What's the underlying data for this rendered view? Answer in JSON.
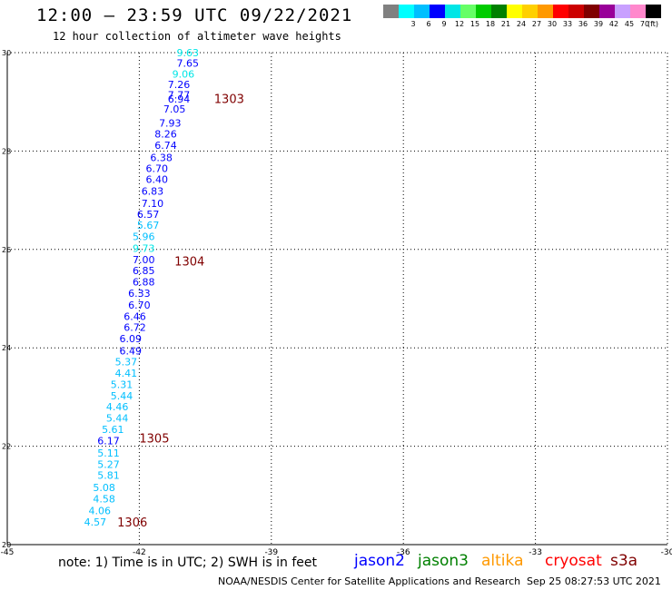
{
  "header": {
    "title": "12:00 — 23:59 UTC 09/22/2021",
    "subtitle": "12 hour collection of altimeter wave heights"
  },
  "color_scale": {
    "unit": "(ft)",
    "swatches": [
      {
        "color": "#808080",
        "label": ""
      },
      {
        "color": "#00ffff",
        "label": "3"
      },
      {
        "color": "#00bfff",
        "label": "6"
      },
      {
        "color": "#0000ff",
        "label": "9"
      },
      {
        "color": "#00e6e6",
        "label": "12"
      },
      {
        "color": "#66ff66",
        "label": "15"
      },
      {
        "color": "#00cc00",
        "label": "18"
      },
      {
        "color": "#008000",
        "label": "21"
      },
      {
        "color": "#ffff00",
        "label": "24"
      },
      {
        "color": "#ffd000",
        "label": "27"
      },
      {
        "color": "#ff9900",
        "label": "30"
      },
      {
        "color": "#ff0000",
        "label": "33"
      },
      {
        "color": "#cc0000",
        "label": "36"
      },
      {
        "color": "#800000",
        "label": "39"
      },
      {
        "color": "#990099",
        "label": "42"
      },
      {
        "color": "#c8a0ff",
        "label": "45"
      },
      {
        "color": "#ff88cc",
        "label": "70"
      },
      {
        "color": "#000000",
        "label": ""
      }
    ]
  },
  "chart_data": {
    "type": "scatter",
    "xlim": [
      -45,
      -30
    ],
    "ylim": [
      20,
      30
    ],
    "x_ticks": [
      "-45",
      "-42",
      "-39",
      "-36",
      "-33",
      "-30"
    ],
    "y_ticks": [
      "20",
      "22",
      "24",
      "26",
      "28",
      "30"
    ],
    "grid": true,
    "points": [
      {
        "lon": -40.9,
        "lat": 30.0,
        "swh": "9.63"
      },
      {
        "lon": -40.9,
        "lat": 29.79,
        "swh": "7.65"
      },
      {
        "lon": -41.0,
        "lat": 29.57,
        "swh": "9.06"
      },
      {
        "lon": -41.1,
        "lat": 29.35,
        "swh": "7.26"
      },
      {
        "lon": -41.1,
        "lat": 29.14,
        "swh": "7.77"
      },
      {
        "lon": -41.1,
        "lat": 29.06,
        "swh": "6.94"
      },
      {
        "lon": -41.2,
        "lat": 28.86,
        "swh": "7.05"
      },
      {
        "lon": -41.3,
        "lat": 28.57,
        "swh": "7.93"
      },
      {
        "lon": -41.4,
        "lat": 28.35,
        "swh": "8.26"
      },
      {
        "lon": -41.4,
        "lat": 28.12,
        "swh": "6.74"
      },
      {
        "lon": -41.5,
        "lat": 27.87,
        "swh": "6.38"
      },
      {
        "lon": -41.6,
        "lat": 27.65,
        "swh": "6.70"
      },
      {
        "lon": -41.6,
        "lat": 27.43,
        "swh": "6.40"
      },
      {
        "lon": -41.7,
        "lat": 27.19,
        "swh": "6.83"
      },
      {
        "lon": -41.7,
        "lat": 26.94,
        "swh": "7.10"
      },
      {
        "lon": -41.8,
        "lat": 26.72,
        "swh": "6.57"
      },
      {
        "lon": -41.8,
        "lat": 26.49,
        "swh": "5.67"
      },
      {
        "lon": -41.9,
        "lat": 26.26,
        "swh": "5.96"
      },
      {
        "lon": -41.9,
        "lat": 26.02,
        "swh": "9.73"
      },
      {
        "lon": -41.9,
        "lat": 25.79,
        "swh": "7.00"
      },
      {
        "lon": -41.9,
        "lat": 25.57,
        "swh": "6.85"
      },
      {
        "lon": -41.9,
        "lat": 25.34,
        "swh": "6.88"
      },
      {
        "lon": -42.0,
        "lat": 25.11,
        "swh": "6.33"
      },
      {
        "lon": -42.0,
        "lat": 24.87,
        "swh": "6.70"
      },
      {
        "lon": -42.1,
        "lat": 24.64,
        "swh": "6.46"
      },
      {
        "lon": -42.1,
        "lat": 24.42,
        "swh": "6.72"
      },
      {
        "lon": -42.2,
        "lat": 24.19,
        "swh": "6.09"
      },
      {
        "lon": -42.2,
        "lat": 23.94,
        "swh": "6.49"
      },
      {
        "lon": -42.3,
        "lat": 23.72,
        "swh": "5.37"
      },
      {
        "lon": -42.3,
        "lat": 23.49,
        "swh": "4.41"
      },
      {
        "lon": -42.4,
        "lat": 23.26,
        "swh": "5.31"
      },
      {
        "lon": -42.4,
        "lat": 23.03,
        "swh": "5.44"
      },
      {
        "lon": -42.5,
        "lat": 22.8,
        "swh": "4.46"
      },
      {
        "lon": -42.5,
        "lat": 22.57,
        "swh": "5.44"
      },
      {
        "lon": -42.6,
        "lat": 22.34,
        "swh": "5.61"
      },
      {
        "lon": -42.7,
        "lat": 22.11,
        "swh": "6.17"
      },
      {
        "lon": -42.7,
        "lat": 21.86,
        "swh": "5.11"
      },
      {
        "lon": -42.7,
        "lat": 21.63,
        "swh": "5.27"
      },
      {
        "lon": -42.7,
        "lat": 21.41,
        "swh": "5.81"
      },
      {
        "lon": -42.8,
        "lat": 21.16,
        "swh": "5.08"
      },
      {
        "lon": -42.8,
        "lat": 20.93,
        "swh": "4.58"
      },
      {
        "lon": -42.9,
        "lat": 20.69,
        "swh": "4.06"
      },
      {
        "lon": -43.0,
        "lat": 20.46,
        "swh": "4.57"
      }
    ],
    "time_markers": [
      {
        "lon": -40.3,
        "lat": 29.07,
        "label": "1303"
      },
      {
        "lon": -41.2,
        "lat": 25.77,
        "label": "1304"
      },
      {
        "lon": -42.0,
        "lat": 22.17,
        "label": "1305"
      },
      {
        "lon": -42.5,
        "lat": 20.46,
        "label": "1306"
      }
    ]
  },
  "footer": {
    "note": "note:  1) Time is in UTC;  2) SWH is in feet",
    "satellites": [
      {
        "name": "jason2",
        "color": "#0000ff"
      },
      {
        "name": "jason3",
        "color": "#008000"
      },
      {
        "name": "altika",
        "color": "#ff9900"
      },
      {
        "name": "cryosat",
        "color": "#ff0000"
      },
      {
        "name": "s3a",
        "color": "#800000"
      }
    ],
    "credit": "NOAA/NESDIS Center for Satellite Applications and Research",
    "timestamp": "Sep 25 08:27:53 UTC 2021"
  }
}
